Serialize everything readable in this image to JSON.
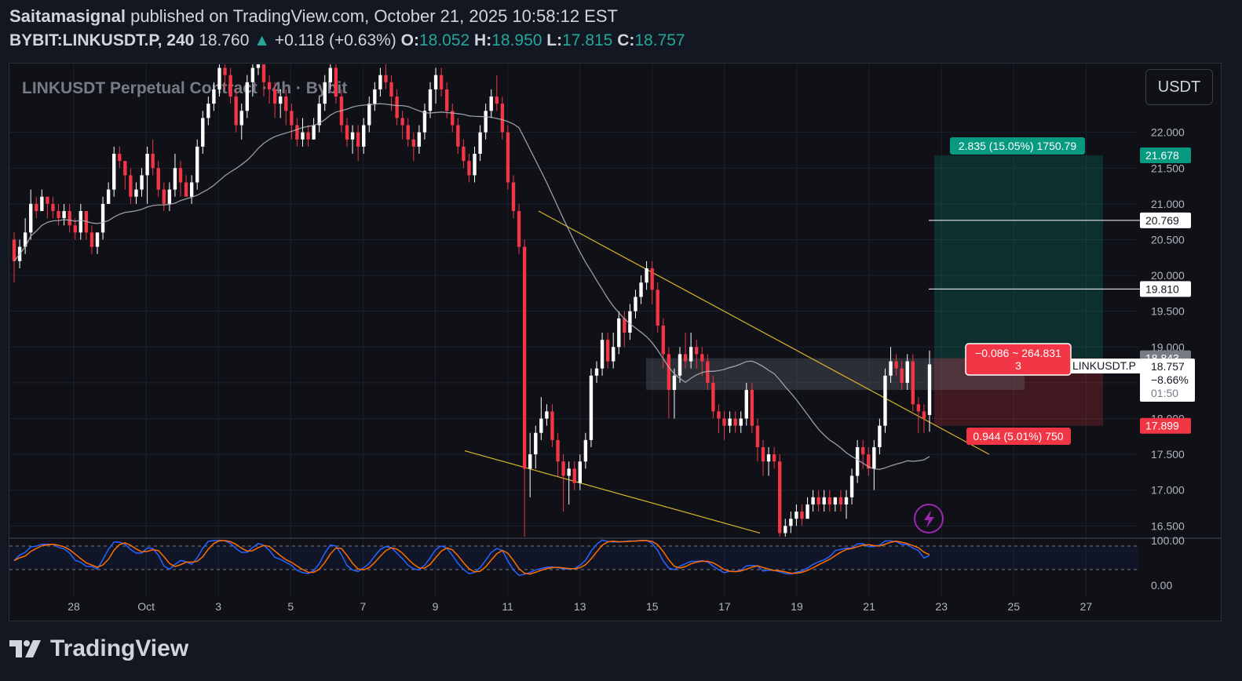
{
  "header": {
    "publisher": "Saitamasignal",
    "published_text": "published on TradingView.com, October 21, 2025 10:58:12 EST",
    "symbol": "BYBIT:LINKUSDT.P, 240",
    "last": "18.760",
    "change": "+0.118 (+0.63%)",
    "o_label": "O:",
    "o_value": "18.052",
    "h_label": "H:",
    "h_value": "18.950",
    "l_label": "L:",
    "l_value": "17.815",
    "c_label": "C:",
    "c_value": "18.757"
  },
  "chart_title": "LINKUSDT Perpetual Contract · 4h · Bybit",
  "currency_button": "USDT",
  "labels": {
    "target_box": "2.835 (15.05%) 1750.79",
    "stop_box": "0.944 (5.01%) 750",
    "entry_box_line1": "−0.086 ~ 264.831",
    "entry_box_line2": "3",
    "symbol_tag": "LINKUSDT.P",
    "price_tag_target": "21.678",
    "price_tag_tp2": "20.769",
    "price_tag_tp1": "19.810",
    "price_tag_high": "18.843",
    "price_tag_last": "18.757",
    "price_tag_pct": "−8.66%",
    "price_tag_timer": "01:50",
    "price_tag_stop": "17.899"
  },
  "footer": {
    "brand": "TradingView"
  },
  "colors": {
    "bg": "#0f1117",
    "up": "#ffffff",
    "down": "#f23645",
    "ma": "#b2b5be",
    "trend": "#d9b42a",
    "green": "#089981",
    "red": "#f23645",
    "stoch_k": "#2962ff",
    "stoch_d": "#ff6d00"
  },
  "chart_data": {
    "type": "candlestick",
    "y_axis": {
      "ticks": [
        22.0,
        21.5,
        21.0,
        20.5,
        20.0,
        19.5,
        19.0,
        18.5,
        18.0,
        17.5,
        17.0,
        16.5
      ],
      "tick_labels": [
        "22.000",
        "21.500",
        "21.000",
        "20.500",
        "20.000",
        "19.500",
        "19.000",
        "18.500",
        "18.000",
        "17.500",
        "17.000",
        "16.500"
      ],
      "range": [
        16.35,
        22.95
      ]
    },
    "x_axis": {
      "tick_labels": [
        "28",
        "Oct",
        "3",
        "5",
        "7",
        "9",
        "11",
        "13",
        "15",
        "17",
        "19",
        "21",
        "23",
        "25",
        "27"
      ]
    },
    "candles": [
      [
        20.5,
        20.2,
        20.6,
        19.9
      ],
      [
        20.2,
        20.4,
        20.5,
        20.1
      ],
      [
        20.4,
        20.6,
        20.8,
        20.3
      ],
      [
        20.6,
        21.0,
        21.2,
        20.5
      ],
      [
        21.0,
        20.9,
        21.1,
        20.8
      ],
      [
        20.9,
        21.1,
        21.2,
        20.9
      ],
      [
        21.1,
        21.0,
        21.1,
        20.8
      ],
      [
        21.0,
        20.9,
        21.1,
        20.8
      ],
      [
        20.9,
        20.8,
        21.0,
        20.7
      ],
      [
        20.8,
        20.9,
        21.0,
        20.7
      ],
      [
        20.9,
        20.7,
        21.0,
        20.6
      ],
      [
        20.7,
        20.6,
        20.8,
        20.5
      ],
      [
        20.6,
        20.9,
        21.0,
        20.5
      ],
      [
        20.9,
        20.6,
        20.9,
        20.5
      ],
      [
        20.6,
        20.4,
        20.7,
        20.3
      ],
      [
        20.4,
        20.6,
        20.6,
        20.3
      ],
      [
        20.6,
        21.0,
        21.1,
        20.5
      ],
      [
        21.0,
        21.2,
        21.3,
        21.0
      ],
      [
        21.2,
        21.7,
        21.8,
        21.1
      ],
      [
        21.7,
        21.6,
        21.8,
        21.5
      ],
      [
        21.6,
        21.4,
        21.6,
        21.2
      ],
      [
        21.4,
        21.1,
        21.5,
        21.0
      ],
      [
        21.1,
        21.2,
        21.3,
        21.0
      ],
      [
        21.2,
        21.4,
        21.5,
        21.1
      ],
      [
        21.4,
        21.7,
        21.8,
        21.0
      ],
      [
        21.7,
        21.5,
        21.9,
        21.4
      ],
      [
        21.5,
        21.2,
        21.6,
        21.1
      ],
      [
        21.2,
        21.0,
        21.3,
        20.9
      ],
      [
        21.0,
        21.2,
        21.3,
        20.9
      ],
      [
        21.2,
        21.5,
        21.7,
        21.1
      ],
      [
        21.5,
        21.3,
        21.6,
        21.1
      ],
      [
        21.3,
        21.1,
        21.4,
        21.1
      ],
      [
        21.1,
        21.3,
        21.4,
        21.0
      ],
      [
        21.3,
        21.8,
        21.9,
        21.2
      ],
      [
        21.8,
        22.2,
        22.3,
        21.7
      ],
      [
        22.2,
        22.4,
        22.5,
        22.1
      ],
      [
        22.4,
        22.6,
        22.7,
        22.3
      ],
      [
        22.6,
        22.9,
        23.0,
        22.5
      ],
      [
        22.9,
        22.8,
        23.0,
        22.6
      ],
      [
        22.8,
        22.5,
        22.9,
        22.4
      ],
      [
        22.5,
        22.1,
        22.6,
        22.0
      ],
      [
        22.1,
        22.3,
        22.4,
        21.9
      ],
      [
        22.3,
        22.7,
        22.8,
        22.2
      ],
      [
        22.7,
        22.9,
        23.0,
        22.5
      ],
      [
        22.9,
        23.1,
        23.2,
        22.8
      ],
      [
        23.1,
        22.7,
        23.1,
        22.5
      ],
      [
        22.7,
        22.6,
        22.8,
        22.4
      ],
      [
        22.6,
        22.4,
        22.7,
        22.2
      ],
      [
        22.4,
        22.5,
        22.6,
        22.2
      ],
      [
        22.5,
        22.3,
        22.6,
        22.1
      ],
      [
        22.3,
        22.1,
        22.4,
        21.9
      ],
      [
        22.1,
        21.9,
        22.2,
        21.8
      ],
      [
        21.9,
        22.0,
        22.2,
        21.8
      ],
      [
        22.0,
        21.9,
        22.1,
        21.8
      ],
      [
        21.9,
        22.1,
        22.2,
        21.9
      ],
      [
        22.1,
        22.4,
        22.5,
        22.0
      ],
      [
        22.4,
        22.7,
        22.8,
        22.3
      ],
      [
        22.7,
        22.9,
        23.0,
        22.6
      ],
      [
        22.9,
        22.5,
        23.0,
        22.4
      ],
      [
        22.5,
        22.1,
        22.6,
        22.0
      ],
      [
        22.1,
        21.9,
        22.2,
        21.8
      ],
      [
        21.9,
        22.0,
        22.1,
        21.7
      ],
      [
        22.0,
        21.8,
        22.1,
        21.6
      ],
      [
        21.8,
        22.1,
        22.2,
        21.7
      ],
      [
        22.1,
        22.4,
        22.5,
        22.0
      ],
      [
        22.4,
        22.6,
        22.7,
        22.3
      ],
      [
        22.6,
        22.8,
        22.9,
        22.5
      ],
      [
        22.8,
        22.7,
        23.0,
        22.6
      ],
      [
        22.7,
        22.5,
        22.8,
        22.3
      ],
      [
        22.5,
        22.2,
        22.6,
        22.1
      ],
      [
        22.2,
        22.1,
        22.3,
        21.9
      ],
      [
        22.1,
        21.9,
        22.2,
        21.8
      ],
      [
        21.9,
        21.8,
        22.0,
        21.6
      ],
      [
        21.8,
        22.0,
        22.1,
        21.7
      ],
      [
        22.0,
        22.3,
        22.4,
        21.9
      ],
      [
        22.3,
        22.6,
        22.7,
        22.2
      ],
      [
        22.6,
        22.8,
        22.9,
        22.4
      ],
      [
        22.8,
        22.6,
        22.9,
        22.5
      ],
      [
        22.6,
        22.3,
        22.7,
        22.2
      ],
      [
        22.3,
        22.1,
        22.4,
        22.0
      ],
      [
        22.1,
        21.8,
        22.2,
        21.7
      ],
      [
        21.8,
        21.6,
        21.9,
        21.5
      ],
      [
        21.6,
        21.4,
        21.7,
        21.3
      ],
      [
        21.4,
        21.7,
        21.8,
        21.3
      ],
      [
        21.7,
        22.0,
        22.1,
        21.6
      ],
      [
        22.0,
        22.3,
        22.4,
        21.9
      ],
      [
        22.3,
        22.5,
        22.6,
        22.2
      ],
      [
        22.5,
        22.4,
        22.8,
        22.3
      ],
      [
        22.4,
        22.0,
        22.5,
        21.9
      ],
      [
        22.0,
        21.3,
        22.1,
        21.2
      ],
      [
        21.3,
        20.9,
        21.4,
        20.8
      ],
      [
        20.9,
        20.4,
        21.0,
        20.3
      ],
      [
        20.4,
        17.3,
        20.5,
        16.3
      ],
      [
        17.3,
        17.5,
        17.8,
        16.9
      ],
      [
        17.5,
        17.8,
        17.9,
        17.3
      ],
      [
        17.8,
        18.0,
        18.3,
        17.7
      ],
      [
        18.0,
        18.1,
        18.2,
        17.9
      ],
      [
        18.1,
        17.7,
        18.2,
        17.6
      ],
      [
        17.7,
        17.4,
        17.8,
        17.2
      ],
      [
        17.4,
        17.2,
        17.5,
        16.7
      ],
      [
        17.2,
        17.3,
        17.4,
        16.8
      ],
      [
        17.3,
        17.1,
        17.4,
        17.0
      ],
      [
        17.1,
        17.4,
        17.5,
        17.0
      ],
      [
        17.4,
        17.7,
        17.8,
        17.3
      ],
      [
        17.7,
        18.6,
        18.7,
        17.6
      ],
      [
        18.6,
        18.7,
        18.8,
        18.5
      ],
      [
        18.7,
        19.1,
        19.2,
        18.6
      ],
      [
        19.1,
        18.8,
        19.2,
        18.7
      ],
      [
        18.8,
        19.0,
        19.2,
        18.7
      ],
      [
        19.0,
        19.4,
        19.5,
        18.9
      ],
      [
        19.4,
        19.2,
        19.5,
        19.0
      ],
      [
        19.2,
        19.5,
        19.6,
        19.1
      ],
      [
        19.5,
        19.7,
        19.8,
        19.4
      ],
      [
        19.7,
        19.9,
        20.0,
        19.6
      ],
      [
        19.9,
        20.1,
        20.2,
        19.8
      ],
      [
        20.1,
        19.8,
        20.2,
        19.6
      ],
      [
        19.8,
        19.3,
        19.9,
        19.2
      ],
      [
        19.3,
        18.9,
        19.4,
        18.7
      ],
      [
        18.9,
        18.4,
        19.0,
        18.0
      ],
      [
        18.4,
        18.6,
        18.7,
        18.0
      ],
      [
        18.6,
        18.9,
        19.0,
        18.5
      ],
      [
        18.9,
        18.8,
        19.2,
        18.7
      ],
      [
        18.8,
        19.0,
        19.2,
        18.7
      ],
      [
        19.0,
        18.9,
        19.1,
        18.7
      ],
      [
        18.9,
        18.8,
        19.0,
        18.6
      ],
      [
        18.8,
        18.5,
        18.9,
        18.4
      ],
      [
        18.5,
        18.1,
        18.6,
        18.0
      ],
      [
        18.1,
        18.0,
        18.2,
        17.8
      ],
      [
        18.0,
        17.9,
        18.1,
        17.7
      ],
      [
        17.9,
        18.0,
        18.1,
        17.8
      ],
      [
        18.0,
        17.9,
        18.1,
        17.8
      ],
      [
        17.9,
        18.0,
        18.1,
        17.8
      ],
      [
        18.0,
        18.4,
        18.5,
        17.9
      ],
      [
        18.4,
        17.9,
        18.5,
        17.8
      ],
      [
        17.9,
        17.6,
        18.0,
        17.4
      ],
      [
        17.6,
        17.4,
        17.7,
        17.2
      ],
      [
        17.4,
        17.5,
        17.6,
        17.2
      ],
      [
        17.5,
        17.4,
        17.6,
        17.3
      ],
      [
        17.4,
        16.4,
        17.5,
        16.3
      ],
      [
        16.4,
        16.5,
        16.6,
        16.3
      ],
      [
        16.5,
        16.6,
        16.7,
        16.4
      ],
      [
        16.6,
        16.7,
        16.8,
        16.5
      ],
      [
        16.7,
        16.6,
        16.8,
        16.5
      ],
      [
        16.6,
        16.8,
        16.9,
        16.6
      ],
      [
        16.8,
        16.9,
        17.0,
        16.7
      ],
      [
        16.9,
        16.8,
        17.0,
        16.7
      ],
      [
        16.8,
        16.9,
        17.0,
        16.7
      ],
      [
        16.9,
        16.8,
        17.0,
        16.7
      ],
      [
        16.8,
        16.9,
        16.9,
        16.7
      ],
      [
        16.9,
        16.8,
        17.0,
        16.7
      ],
      [
        16.8,
        16.9,
        17.0,
        16.6
      ],
      [
        16.9,
        17.2,
        17.3,
        16.8
      ],
      [
        17.2,
        17.6,
        17.7,
        17.1
      ],
      [
        17.6,
        17.5,
        17.7,
        17.3
      ],
      [
        17.5,
        17.3,
        17.6,
        17.2
      ],
      [
        17.3,
        17.6,
        17.7,
        17.0
      ],
      [
        17.6,
        17.9,
        18.0,
        17.5
      ],
      [
        17.9,
        18.6,
        18.7,
        17.8
      ],
      [
        18.6,
        18.8,
        19.0,
        18.5
      ],
      [
        18.8,
        18.7,
        18.9,
        18.6
      ],
      [
        18.7,
        18.5,
        18.8,
        18.4
      ],
      [
        18.5,
        18.8,
        18.9,
        18.4
      ],
      [
        18.8,
        18.2,
        18.9,
        18.1
      ],
      [
        18.2,
        18.1,
        18.3,
        17.8
      ],
      [
        18.1,
        18.0,
        18.2,
        17.8
      ],
      [
        18.05,
        18.757,
        18.95,
        17.815
      ]
    ],
    "ma": "30-period moving average",
    "oscillator": {
      "type": "stochastic",
      "levels": [
        80,
        20
      ],
      "tick_labels": [
        "100.00",
        "0.00"
      ]
    }
  }
}
